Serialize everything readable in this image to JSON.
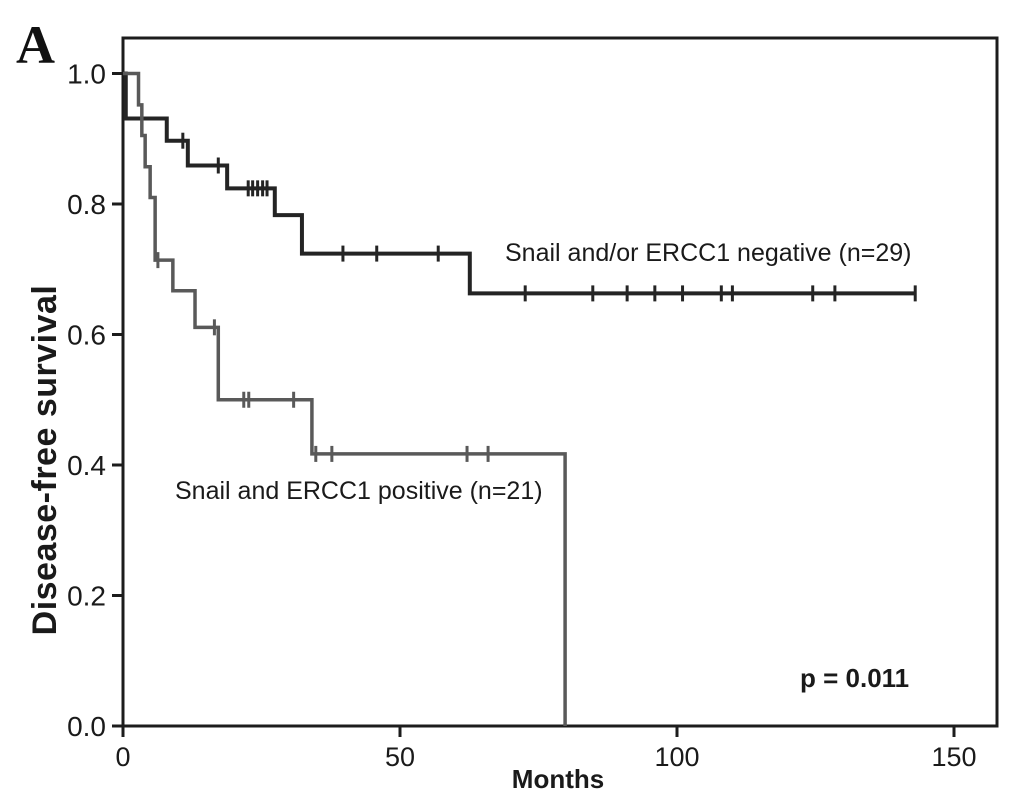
{
  "panel_label": "A",
  "chart_data": {
    "type": "line",
    "subtype": "kaplan-meier-step",
    "title": "",
    "xlabel": "Months",
    "ylabel": "Disease-free survival",
    "xlim": [
      0,
      157.5
    ],
    "ylim": [
      0.0,
      1.055
    ],
    "x_ticks": [
      0,
      50,
      100,
      150
    ],
    "y_ticks": [
      1.0,
      0.8,
      0.6,
      0.4,
      0.2,
      0.0
    ],
    "grid": false,
    "frame": true,
    "axis_color": "#1c1c1c",
    "p_value_label": "p = 0.011",
    "legend_position": "labels drawn on plot",
    "series": [
      {
        "id": "negative",
        "name": "Snail and/or ERCC1 negative (n=29)",
        "n": 29,
        "color": "#242424",
        "stroke_width": 4,
        "steps": [
          [
            0,
            1.0
          ],
          [
            0.5,
            0.931
          ],
          [
            7.9,
            0.897
          ],
          [
            11.7,
            0.859
          ],
          [
            18.8,
            0.824
          ],
          [
            27.4,
            0.783
          ],
          [
            32.3,
            0.724
          ],
          [
            62.6,
            0.663
          ]
        ],
        "end_month": 143,
        "censor_months": [
          10.8,
          17.2,
          22.6,
          23.4,
          24.3,
          25.2,
          26.0,
          39.7,
          45.8,
          56.9,
          72.6,
          84.8,
          91.0,
          96.0,
          101.0,
          108.0,
          110.0,
          124.5,
          128.5,
          143.0
        ]
      },
      {
        "id": "positive",
        "name": "Snail and ERCC1 positive (n=21)",
        "n": 21,
        "color": "#595959",
        "stroke_width": 3.5,
        "steps": [
          [
            0,
            1.0
          ],
          [
            2.8,
            0.952
          ],
          [
            3.4,
            0.905
          ],
          [
            4.0,
            0.857
          ],
          [
            4.9,
            0.81
          ],
          [
            5.8,
            0.714
          ],
          [
            9.0,
            0.667
          ],
          [
            13.0,
            0.611
          ],
          [
            17.2,
            0.5
          ],
          [
            34.1,
            0.417
          ],
          [
            79.8,
            0.0
          ]
        ],
        "end_month": 79.8,
        "censor_months": [
          6.3,
          16.5,
          21.8,
          22.7,
          30.8,
          34.8,
          37.7,
          62.1,
          65.9
        ]
      }
    ]
  }
}
